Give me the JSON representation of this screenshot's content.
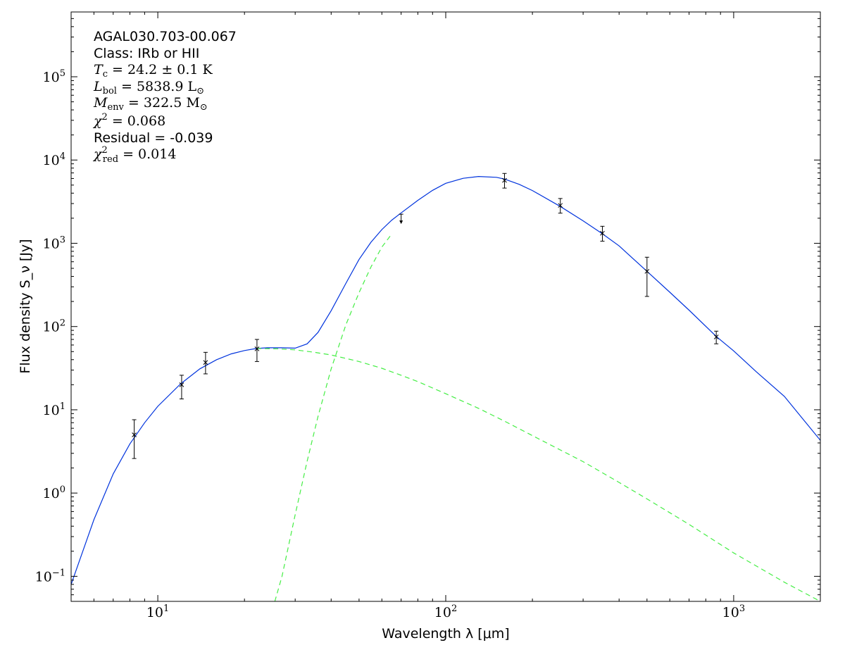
{
  "chart_data": {
    "type": "scatter",
    "x_scale": "log",
    "y_scale": "log",
    "xlim": [
      5,
      2000
    ],
    "ylim": [
      0.05,
      600000
    ],
    "xlabel": "Wavelength λ [μm]",
    "ylabel": "Flux density S_ν [Jy]",
    "x_ticks": [
      {
        "value": 10,
        "base": "10",
        "exp": "1"
      },
      {
        "value": 100,
        "base": "10",
        "exp": "2"
      },
      {
        "value": 1000,
        "base": "10",
        "exp": "3"
      }
    ],
    "y_ticks": [
      {
        "value": 0.1,
        "base": "10",
        "exp": "−1"
      },
      {
        "value": 1,
        "base": "10",
        "exp": "0"
      },
      {
        "value": 10,
        "base": "10",
        "exp": "1"
      },
      {
        "value": 100,
        "base": "10",
        "exp": "2"
      },
      {
        "value": 1000,
        "base": "10",
        "exp": "3"
      },
      {
        "value": 10000,
        "base": "10",
        "exp": "4"
      },
      {
        "value": 100000,
        "base": "10",
        "exp": "5"
      }
    ],
    "annotation": {
      "source": "AGAL030.703-00.067",
      "class": "Class: IRb or HII",
      "tc": "24.2 ± 0.1 K",
      "lbol": "5838.9 L",
      "menv": "322.5 M",
      "chi2": "0.068",
      "residual": "Residual = -0.039",
      "chi2_red": "0.014"
    },
    "points": [
      {
        "x": 8.28,
        "y": 5.0,
        "lo": 2.6,
        "hi": 7.6
      },
      {
        "x": 12.1,
        "y": 20,
        "lo": 13.5,
        "hi": 26
      },
      {
        "x": 14.65,
        "y": 37,
        "lo": 27,
        "hi": 49
      },
      {
        "x": 22.1,
        "y": 54,
        "lo": 38,
        "hi": 70
      },
      {
        "x": 160,
        "y": 5700,
        "lo": 4600,
        "hi": 6900
      },
      {
        "x": 250,
        "y": 2850,
        "lo": 2300,
        "hi": 3450
      },
      {
        "x": 350,
        "y": 1320,
        "lo": 1060,
        "hi": 1600
      },
      {
        "x": 500,
        "y": 460,
        "lo": 230,
        "hi": 680
      },
      {
        "x": 870,
        "y": 75,
        "lo": 62,
        "hi": 88
      }
    ],
    "upper_limits": [
      {
        "x": 70,
        "y": 2150
      }
    ],
    "series": [
      {
        "kind": "total-fit",
        "color": "#0033dd",
        "style": "solid",
        "x": [
          5,
          6,
          7,
          8,
          9,
          10,
          12,
          14,
          16,
          18,
          20,
          22,
          24,
          27,
          30,
          33,
          36,
          40,
          45,
          50,
          55,
          60,
          65,
          70,
          80,
          90,
          100,
          115,
          130,
          150,
          160,
          180,
          200,
          250,
          300,
          350,
          400,
          500,
          600,
          700,
          870,
          1000,
          1200,
          1500,
          2000
        ],
        "y": [
          0.08,
          0.48,
          1.7,
          3.9,
          7.0,
          11.0,
          20.5,
          31,
          40,
          47,
          51.5,
          54.5,
          55.5,
          55.5,
          55,
          62,
          85,
          155,
          330,
          640,
          1030,
          1460,
          1900,
          2320,
          3280,
          4320,
          5250,
          6030,
          6350,
          6200,
          5900,
          5100,
          4300,
          2770,
          1860,
          1300,
          930,
          460,
          258,
          157,
          76,
          51,
          28.5,
          14.5,
          4.3
        ]
      },
      {
        "kind": "warm-component",
        "color": "#44ee44",
        "style": "dashed",
        "x": [
          22,
          26,
          30,
          35,
          40,
          50,
          60,
          70,
          80,
          100,
          130,
          160,
          200,
          300,
          400,
          500,
          700,
          1000,
          1500,
          2000
        ],
        "y": [
          54.5,
          54,
          52.5,
          49,
          45.5,
          38,
          31.5,
          26,
          21.8,
          15.6,
          10.4,
          7.3,
          4.9,
          2.38,
          1.34,
          0.85,
          0.42,
          0.191,
          0.085,
          0.05
        ]
      },
      {
        "kind": "cold-component",
        "color": "#44ee44",
        "style": "dashed",
        "x": [
          25.5,
          27,
          30,
          33,
          36,
          40,
          45,
          50,
          55,
          60,
          65
        ],
        "y": [
          0.05,
          0.1,
          0.55,
          2.4,
          8.3,
          31,
          105,
          255,
          520,
          900,
          1300
        ]
      }
    ]
  }
}
